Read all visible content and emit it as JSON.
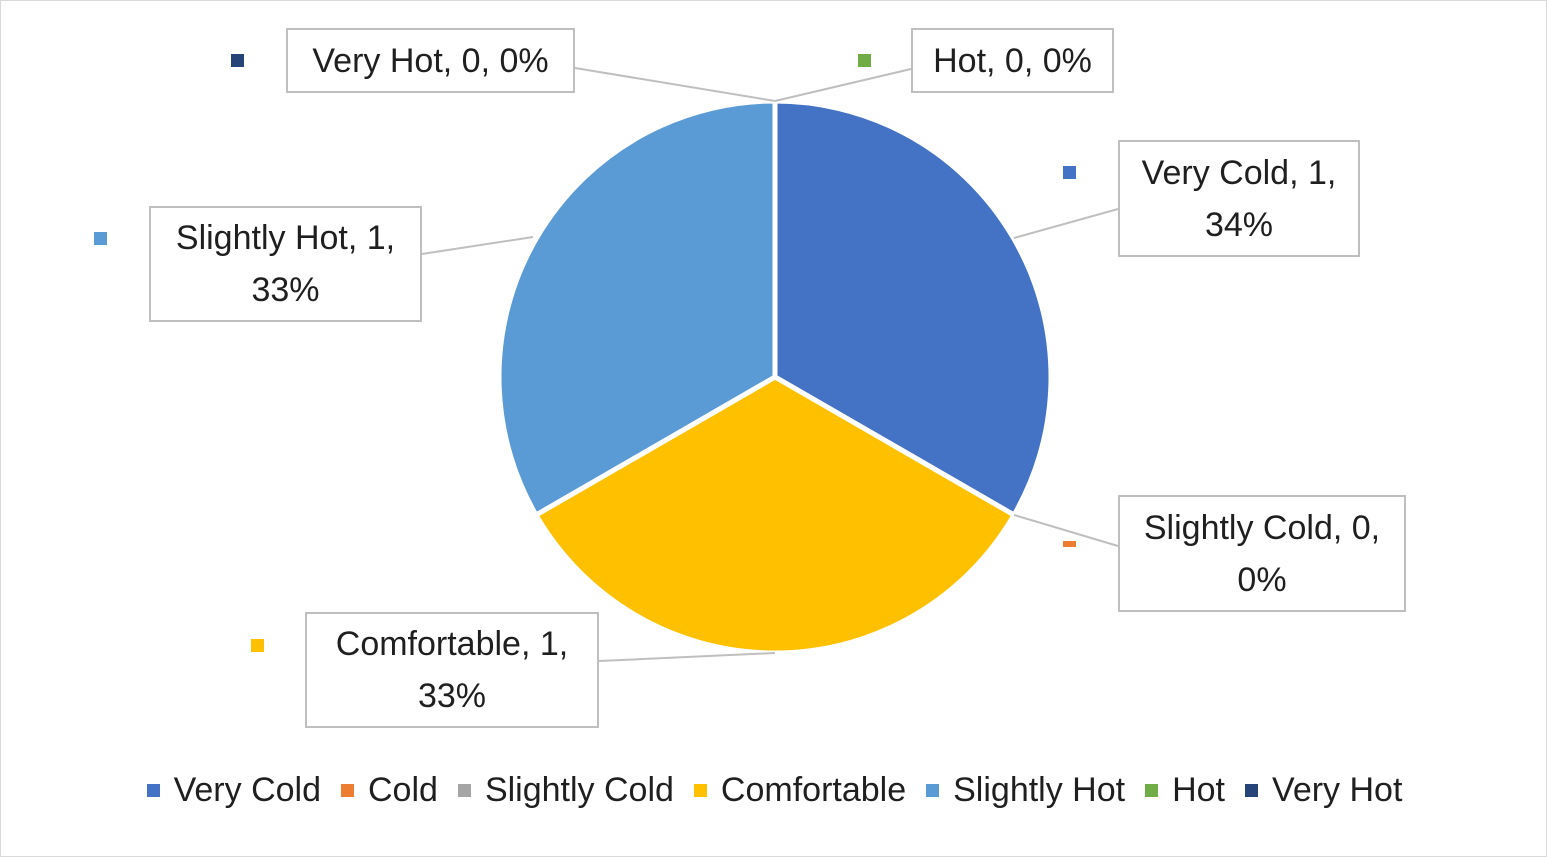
{
  "chart_data": {
    "type": "pie",
    "categories": [
      "Very Cold",
      "Cold",
      "Slightly Cold",
      "Comfortable",
      "Slightly Hot",
      "Hot",
      "Very Hot"
    ],
    "values": [
      1,
      0,
      0,
      1,
      1,
      0,
      0
    ],
    "percentages": [
      "34%",
      "0%",
      "0%",
      "33%",
      "33%",
      "0%",
      "0%"
    ],
    "colors": [
      "#4472C4",
      "#ED7D31",
      "#A5A5A5",
      "#FFC000",
      "#5B9BD5",
      "#70AD47",
      "#264478"
    ],
    "data_labels": [
      "Very Cold, 1,\n34%",
      "",
      "Slightly Cold, 0,\n0%",
      "Comfortable, 1,\n33%",
      "Slightly Hot, 1,\n33%",
      "Hot, 0, 0%",
      "Very Hot, 0, 0%"
    ],
    "legend": {
      "position": "bottom",
      "entries": [
        "Very Cold",
        "Cold",
        "Slightly Cold",
        "Comfortable",
        "Slightly Hot",
        "Hot",
        "Very Hot"
      ]
    },
    "title": ""
  }
}
